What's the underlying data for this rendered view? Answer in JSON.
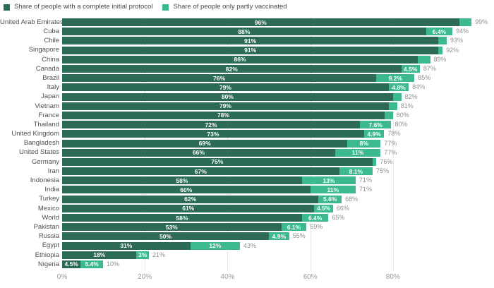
{
  "legend": [
    {
      "label": "Share of people with a complete initial protocol",
      "color": "#2c6b55"
    },
    {
      "label": "Share of people only partly vaccinated",
      "color": "#3cb98d"
    }
  ],
  "colors": {
    "complete": "#2c6b55",
    "partial": "#3cb98d",
    "total_label": "#8b9196",
    "country_label": "#4c504e",
    "axis_label": "#9b9b9b",
    "gridline": "#d2d2d2"
  },
  "chart_data": {
    "type": "bar",
    "orientation": "horizontal",
    "stacked": true,
    "grid": "dotted-vertical",
    "legend_position": "top-left",
    "xlim": [
      0,
      100
    ],
    "x_ticks": [
      {
        "label": "0%",
        "value": 0
      },
      {
        "label": "20%",
        "value": 20
      },
      {
        "label": "40%",
        "value": 40
      },
      {
        "label": "60%",
        "value": 60
      },
      {
        "label": "80%",
        "value": 80
      }
    ],
    "series_names": [
      "Share of people with a complete initial protocol",
      "Share of people only partly vaccinated"
    ],
    "rows": [
      {
        "country": "United Arab Emirates",
        "complete": 96,
        "partial": 3,
        "complete_label": "96%",
        "partial_label": "",
        "total_label": "99%"
      },
      {
        "country": "Cuba",
        "complete": 88,
        "partial": 6.4,
        "complete_label": "88%",
        "partial_label": "6.4%",
        "total_label": "94%"
      },
      {
        "country": "Chile",
        "complete": 91,
        "partial": 2,
        "complete_label": "91%",
        "partial_label": "",
        "total_label": "93%"
      },
      {
        "country": "Singapore",
        "complete": 91,
        "partial": 1,
        "complete_label": "91%",
        "partial_label": "",
        "total_label": "92%"
      },
      {
        "country": "China",
        "complete": 86,
        "partial": 3,
        "complete_label": "86%",
        "partial_label": "",
        "total_label": "89%"
      },
      {
        "country": "Canada",
        "complete": 82,
        "partial": 4.5,
        "complete_label": "82%",
        "partial_label": "4.5%",
        "total_label": "87%"
      },
      {
        "country": "Brazil",
        "complete": 76,
        "partial": 9.2,
        "complete_label": "76%",
        "partial_label": "9.2%",
        "total_label": "85%"
      },
      {
        "country": "Italy",
        "complete": 79,
        "partial": 4.8,
        "complete_label": "79%",
        "partial_label": "4.8%",
        "total_label": "84%"
      },
      {
        "country": "Japan",
        "complete": 80,
        "partial": 2,
        "complete_label": "80%",
        "partial_label": "",
        "total_label": "82%"
      },
      {
        "country": "Vietnam",
        "complete": 79,
        "partial": 2,
        "complete_label": "79%",
        "partial_label": "",
        "total_label": "81%"
      },
      {
        "country": "France",
        "complete": 78,
        "partial": 2,
        "complete_label": "78%",
        "partial_label": "",
        "total_label": "80%"
      },
      {
        "country": "Thailand",
        "complete": 72,
        "partial": 7.6,
        "complete_label": "72%",
        "partial_label": "7.6%",
        "total_label": "80%"
      },
      {
        "country": "United Kingdom",
        "complete": 73,
        "partial": 4.9,
        "complete_label": "73%",
        "partial_label": "4.9%",
        "total_label": "78%"
      },
      {
        "country": "Bangladesh",
        "complete": 69,
        "partial": 8,
        "complete_label": "69%",
        "partial_label": "8%",
        "total_label": "77%"
      },
      {
        "country": "United States",
        "complete": 66,
        "partial": 11,
        "complete_label": "66%",
        "partial_label": "11%",
        "total_label": "77%"
      },
      {
        "country": "Germany",
        "complete": 75,
        "partial": 1,
        "complete_label": "75%",
        "partial_label": "",
        "total_label": "76%"
      },
      {
        "country": "Iran",
        "complete": 67,
        "partial": 8.1,
        "complete_label": "67%",
        "partial_label": "8.1%",
        "total_label": "75%"
      },
      {
        "country": "Indonesia",
        "complete": 58,
        "partial": 13,
        "complete_label": "58%",
        "partial_label": "13%",
        "total_label": "71%"
      },
      {
        "country": "India",
        "complete": 60,
        "partial": 11,
        "complete_label": "60%",
        "partial_label": "11%",
        "total_label": "71%"
      },
      {
        "country": "Turkey",
        "complete": 62,
        "partial": 5.6,
        "complete_label": "62%",
        "partial_label": "5.6%",
        "total_label": "68%"
      },
      {
        "country": "Mexico",
        "complete": 61,
        "partial": 4.5,
        "complete_label": "61%",
        "partial_label": "4.5%",
        "total_label": "66%"
      },
      {
        "country": "World",
        "complete": 58,
        "partial": 6.4,
        "complete_label": "58%",
        "partial_label": "6.4%",
        "total_label": "65%"
      },
      {
        "country": "Pakistan",
        "complete": 53,
        "partial": 6.1,
        "complete_label": "53%",
        "partial_label": "6.1%",
        "total_label": "59%"
      },
      {
        "country": "Russia",
        "complete": 50,
        "partial": 4.9,
        "complete_label": "50%",
        "partial_label": "4.9%",
        "total_label": "55%"
      },
      {
        "country": "Egypt",
        "complete": 31,
        "partial": 12,
        "complete_label": "31%",
        "partial_label": "12%",
        "total_label": "43%"
      },
      {
        "country": "Ethiopia",
        "complete": 18,
        "partial": 3,
        "complete_label": "18%",
        "partial_label": "3%",
        "total_label": "21%"
      },
      {
        "country": "Nigeria",
        "complete": 4.5,
        "partial": 5.4,
        "complete_label": "4.5%",
        "partial_label": "5.4%",
        "total_label": "10%"
      }
    ]
  }
}
